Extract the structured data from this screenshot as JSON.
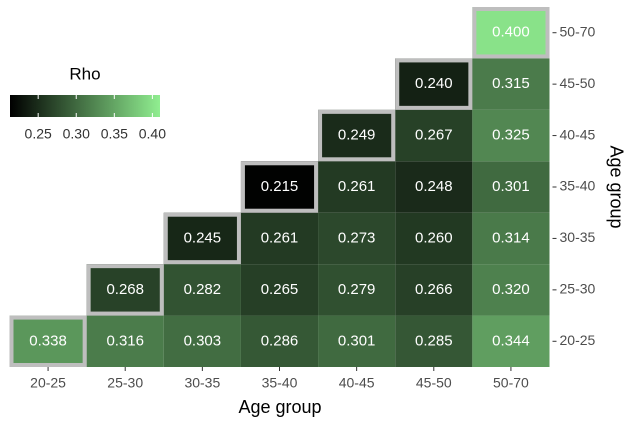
{
  "chart_data": {
    "type": "heatmap",
    "x_label": "Age group",
    "y_label": "Age group",
    "x_categories": [
      "20-25",
      "25-30",
      "30-35",
      "35-40",
      "40-45",
      "45-50",
      "50-70"
    ],
    "y_categories": [
      "20-25",
      "25-30",
      "30-35",
      "35-40",
      "40-45",
      "45-50",
      "50-70"
    ],
    "values": [
      [
        0.338,
        0.316,
        0.303,
        0.286,
        0.301,
        0.285,
        0.344
      ],
      [
        null,
        0.268,
        0.282,
        0.265,
        0.279,
        0.266,
        0.32
      ],
      [
        null,
        null,
        0.245,
        0.261,
        0.273,
        0.26,
        0.314
      ],
      [
        null,
        null,
        null,
        0.215,
        0.261,
        0.248,
        0.301
      ],
      [
        null,
        null,
        null,
        null,
        0.249,
        0.267,
        0.325
      ],
      [
        null,
        null,
        null,
        null,
        null,
        0.24,
        0.315
      ],
      [
        null,
        null,
        null,
        null,
        null,
        null,
        0.4
      ]
    ],
    "value_labels": [
      [
        "0.338",
        "0.316",
        "0.303",
        "0.286",
        "0.301",
        "0.285",
        "0.344"
      ],
      [
        null,
        "0.268",
        "0.282",
        "0.265",
        "0.279",
        "0.266",
        "0.320"
      ],
      [
        null,
        null,
        "0.245",
        "0.261",
        "0.273",
        "0.260",
        "0.314"
      ],
      [
        null,
        null,
        null,
        "0.215",
        "0.261",
        "0.248",
        "0.301"
      ],
      [
        null,
        null,
        null,
        null,
        "0.249",
        "0.267",
        "0.325"
      ],
      [
        null,
        null,
        null,
        null,
        null,
        "0.240",
        "0.315"
      ],
      [
        null,
        null,
        null,
        null,
        null,
        null,
        "0.400"
      ]
    ],
    "highlight_diagonal": true,
    "colorbar": {
      "title": "Rho",
      "low_color": "#000000",
      "high_color": "#90ee90",
      "clim": [
        0.213,
        0.41
      ],
      "ticks": [
        {
          "value": 0.25,
          "label": "0.25"
        },
        {
          "value": 0.3,
          "label": "0.30"
        },
        {
          "value": 0.35,
          "label": "0.35"
        },
        {
          "value": 0.4,
          "label": "0.40"
        }
      ]
    }
  }
}
